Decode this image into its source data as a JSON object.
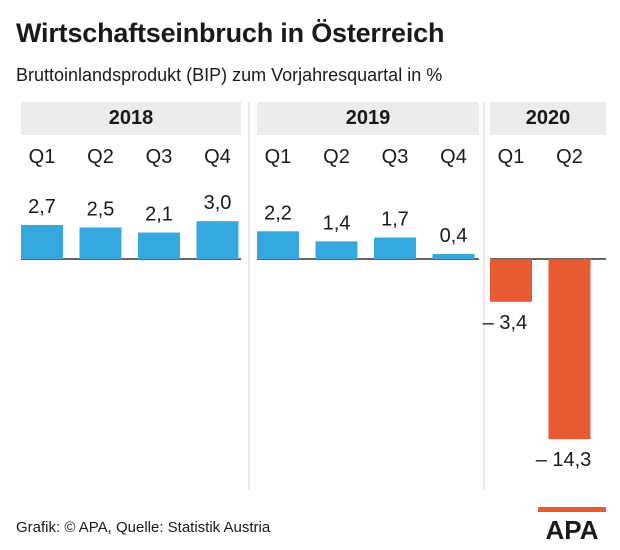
{
  "title": "Wirtschaftseinbruch in Österreich",
  "subtitle": "Bruttoinlandsprodukt (BIP) zum Vorjahresquartal in %",
  "source": "Grafik: © APA, Quelle: Statistik Austria",
  "logo_text": "APA",
  "colors": {
    "positive": "#35a8df",
    "negative": "#e85a31",
    "band": "#ececec",
    "baseline": "#333333"
  },
  "chart_data": {
    "type": "bar",
    "ylabel": "%",
    "groups": [
      {
        "year": "2018",
        "quarters": [
          "Q1",
          "Q2",
          "Q3",
          "Q4"
        ],
        "values": [
          2.7,
          2.5,
          2.1,
          3.0
        ],
        "labels": [
          "2,7",
          "2,5",
          "2,1",
          "3,0"
        ]
      },
      {
        "year": "2019",
        "quarters": [
          "Q1",
          "Q2",
          "Q3",
          "Q4"
        ],
        "values": [
          2.2,
          1.4,
          1.7,
          0.4
        ],
        "labels": [
          "2,2",
          "1,4",
          "1,7",
          "0,4"
        ]
      },
      {
        "year": "2020",
        "quarters": [
          "Q1",
          "Q2"
        ],
        "values": [
          -3.4,
          -14.3
        ],
        "labels": [
          "– 3,4",
          "– 14,3"
        ]
      }
    ]
  }
}
